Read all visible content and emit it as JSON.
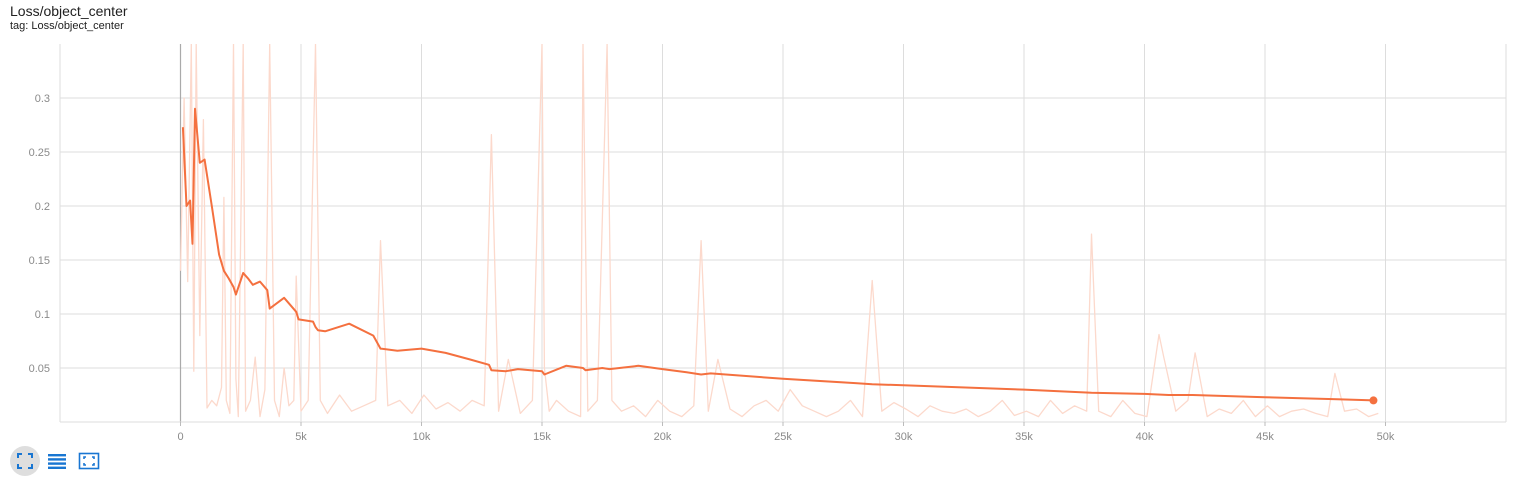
{
  "card": {
    "title": "Loss/object_center",
    "tag": "tag: Loss/object_center"
  },
  "toolbar": {
    "buttons": [
      {
        "icon": "expand-icon",
        "active": true
      },
      {
        "icon": "list-icon",
        "active": false
      },
      {
        "icon": "fit-domain-icon",
        "active": false
      }
    ]
  },
  "colors": {
    "smoothed": "#f4703f",
    "raw": "#fcd9cc",
    "grid": "#dddddd",
    "origin_axis": "#aaaaaa",
    "icon": "#1976d2"
  },
  "chart_data": {
    "type": "line",
    "title": "Loss/object_center",
    "xlabel": "",
    "ylabel": "",
    "xlim": [
      -5000,
      55000
    ],
    "ylim": [
      0,
      0.35
    ],
    "x_ticks": [
      0,
      5000,
      10000,
      15000,
      20000,
      25000,
      30000,
      35000,
      40000,
      45000,
      50000
    ],
    "x_tick_labels": [
      "0",
      "5k",
      "10k",
      "15k",
      "20k",
      "25k",
      "30k",
      "35k",
      "40k",
      "45k",
      "50k"
    ],
    "y_ticks": [
      0.05,
      0.1,
      0.15,
      0.2,
      0.25,
      0.3
    ],
    "y_tick_labels": [
      "0.05",
      "0.1",
      "0.15",
      "0.2",
      "0.25",
      "0.3"
    ],
    "grid": true,
    "series": [
      {
        "role": "smoothed",
        "x": [
          100,
          250,
          400,
          500,
          600,
          800,
          1000,
          1300,
          1600,
          1800,
          2000,
          2200,
          2300,
          2600,
          2800,
          3000,
          3300,
          3600,
          3700,
          4300,
          4800,
          4900,
          5500,
          5600,
          5700,
          6000,
          7000,
          8000,
          8300,
          9000,
          10000,
          11000,
          12000,
          12800,
          12900,
          13500,
          14000,
          15000,
          15100,
          16000,
          16700,
          16800,
          17500,
          17800,
          19000,
          20000,
          21000,
          21600,
          22000,
          25000,
          28000,
          28700,
          30000,
          35000,
          37800,
          40000,
          41000,
          42000,
          45000,
          48000,
          49500
        ],
        "y": [
          0.273,
          0.2,
          0.205,
          0.165,
          0.29,
          0.24,
          0.243,
          0.2,
          0.155,
          0.14,
          0.133,
          0.125,
          0.118,
          0.138,
          0.133,
          0.127,
          0.13,
          0.122,
          0.105,
          0.115,
          0.102,
          0.095,
          0.093,
          0.088,
          0.085,
          0.084,
          0.091,
          0.08,
          0.068,
          0.066,
          0.068,
          0.064,
          0.058,
          0.053,
          0.048,
          0.047,
          0.049,
          0.047,
          0.044,
          0.052,
          0.05,
          0.048,
          0.05,
          0.049,
          0.052,
          0.049,
          0.046,
          0.044,
          0.045,
          0.04,
          0.036,
          0.035,
          0.034,
          0.03,
          0.027,
          0.026,
          0.025,
          0.025,
          0.023,
          0.021,
          0.02
        ]
      },
      {
        "role": "raw",
        "x": [
          0,
          150,
          300,
          450,
          550,
          650,
          800,
          950,
          1100,
          1300,
          1500,
          1700,
          1800,
          1900,
          2050,
          2200,
          2300,
          2400,
          2600,
          2700,
          2900,
          3100,
          3300,
          3500,
          3700,
          3900,
          4100,
          4300,
          4500,
          4700,
          4800,
          5000,
          5300,
          5600,
          5800,
          6100,
          6600,
          7100,
          7600,
          8100,
          8300,
          8600,
          9100,
          9600,
          10100,
          10600,
          11100,
          11600,
          12100,
          12600,
          12900,
          13200,
          13600,
          14100,
          14600,
          15000,
          15100,
          15300,
          15600,
          16100,
          16600,
          16700,
          16900,
          17300,
          17700,
          17900,
          18300,
          18800,
          19300,
          19800,
          20300,
          20800,
          21300,
          21600,
          21900,
          22300,
          22800,
          23300,
          23800,
          24300,
          24800,
          25300,
          25800,
          26300,
          26800,
          27300,
          27800,
          28300,
          28700,
          29100,
          29600,
          30100,
          30600,
          31100,
          31600,
          32100,
          32600,
          33100,
          33600,
          34100,
          34600,
          35100,
          35600,
          36100,
          36600,
          37100,
          37600,
          37800,
          38100,
          38600,
          39100,
          39600,
          40100,
          40600,
          40800,
          41300,
          41800,
          42100,
          42600,
          43100,
          43600,
          44100,
          44600,
          45100,
          45600,
          46100,
          46600,
          47100,
          47600,
          47900,
          48300,
          48800,
          49300,
          49700
        ],
        "y": [
          0.14,
          0.3,
          0.13,
          0.35,
          0.047,
          0.35,
          0.08,
          0.28,
          0.013,
          0.02,
          0.015,
          0.032,
          0.208,
          0.02,
          0.008,
          0.35,
          0.04,
          0.005,
          0.35,
          0.01,
          0.02,
          0.06,
          0.005,
          0.03,
          0.35,
          0.02,
          0.005,
          0.05,
          0.015,
          0.02,
          0.135,
          0.01,
          0.02,
          0.35,
          0.02,
          0.008,
          0.025,
          0.01,
          0.015,
          0.02,
          0.168,
          0.015,
          0.02,
          0.008,
          0.025,
          0.012,
          0.018,
          0.01,
          0.02,
          0.015,
          0.266,
          0.01,
          0.058,
          0.008,
          0.02,
          0.35,
          0.05,
          0.01,
          0.02,
          0.01,
          0.005,
          0.35,
          0.01,
          0.02,
          0.35,
          0.02,
          0.01,
          0.015,
          0.005,
          0.02,
          0.01,
          0.005,
          0.015,
          0.168,
          0.01,
          0.058,
          0.012,
          0.005,
          0.015,
          0.02,
          0.01,
          0.03,
          0.015,
          0.01,
          0.005,
          0.01,
          0.02,
          0.005,
          0.131,
          0.01,
          0.018,
          0.012,
          0.005,
          0.015,
          0.01,
          0.008,
          0.012,
          0.005,
          0.01,
          0.02,
          0.006,
          0.01,
          0.005,
          0.02,
          0.008,
          0.015,
          0.01,
          0.174,
          0.01,
          0.005,
          0.02,
          0.008,
          0.005,
          0.081,
          0.06,
          0.01,
          0.02,
          0.064,
          0.005,
          0.012,
          0.008,
          0.02,
          0.005,
          0.015,
          0.005,
          0.01,
          0.012,
          0.008,
          0.005,
          0.045,
          0.01,
          0.012,
          0.005,
          0.008
        ]
      }
    ]
  }
}
